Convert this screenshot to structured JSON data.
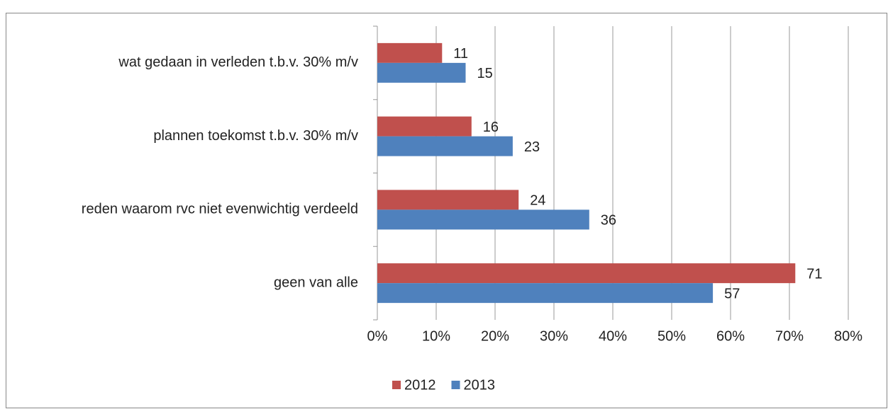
{
  "chart_data": {
    "type": "bar",
    "orientation": "horizontal",
    "categories": [
      "wat gedaan in verleden t.b.v. 30% m/v",
      "plannen toekomst t.b.v. 30% m/v",
      "reden waarom rvc niet evenwichtig verdeeld",
      "geen van alle"
    ],
    "series": [
      {
        "name": "2012",
        "color": "#c0504d",
        "values": [
          11,
          16,
          24,
          71
        ]
      },
      {
        "name": "2013",
        "color": "#4f81bd",
        "values": [
          15,
          23,
          36,
          57
        ]
      }
    ],
    "xlim": [
      0,
      80
    ],
    "xticks": [
      {
        "value": 0,
        "label": "0%"
      },
      {
        "value": 10,
        "label": "10%"
      },
      {
        "value": 20,
        "label": "20%"
      },
      {
        "value": 30,
        "label": "30%"
      },
      {
        "value": 40,
        "label": "40%"
      },
      {
        "value": 50,
        "label": "50%"
      },
      {
        "value": 60,
        "label": "60%"
      },
      {
        "value": 70,
        "label": "70%"
      },
      {
        "value": 80,
        "label": "80%"
      }
    ],
    "grid": true,
    "legend": "bottom"
  }
}
